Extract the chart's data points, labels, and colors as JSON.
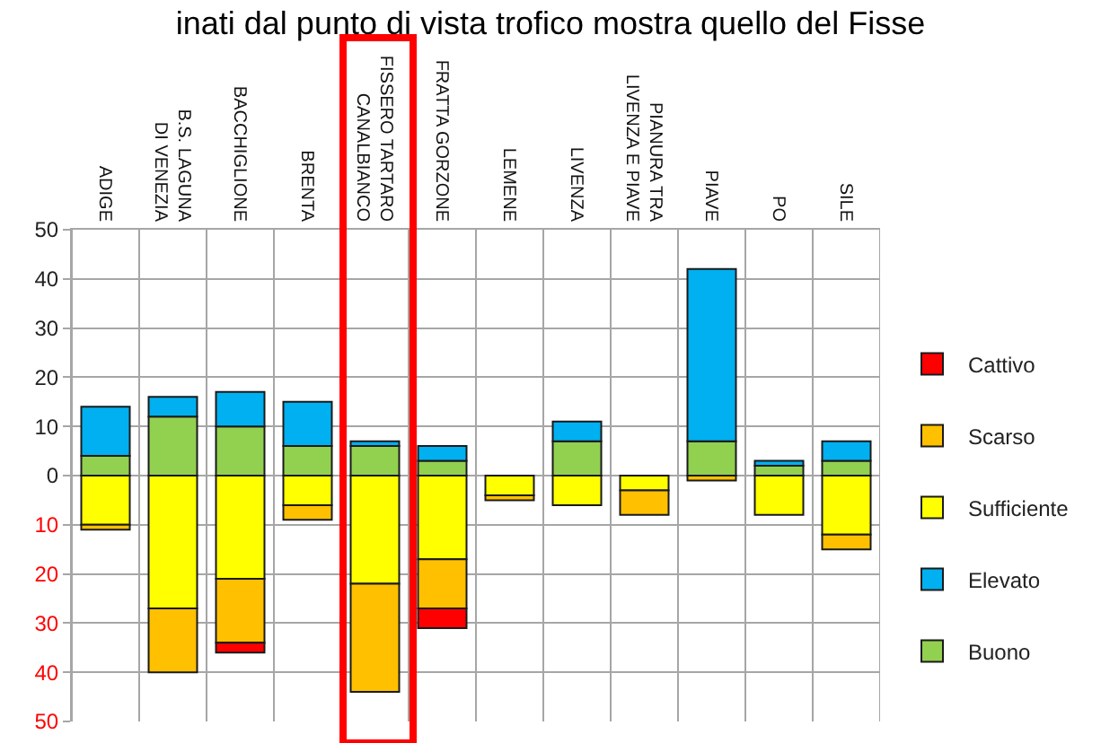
{
  "chart_data": {
    "type": "bar",
    "stacked": true,
    "title": "inati dal punto di vista trofico mostra quello del Fisse",
    "categories": [
      "ADIGE",
      "B.S. LAGUNA\nDI VENEZIA",
      "BACCHIGLIONE",
      "BRENTA",
      "FISSERO TARTARO\nCANALBIANCO",
      "FRATTA GORZONE",
      "LEMENE",
      "LIVENZA",
      "PIANURA TRA\nLIVENZA E PIAVE",
      "PIAVE",
      "PO",
      "SILE"
    ],
    "series": [
      {
        "name": "Buono",
        "color": "#92d050",
        "values": [
          4,
          12,
          10,
          6,
          6,
          3,
          null,
          7,
          null,
          7,
          2,
          3
        ]
      },
      {
        "name": "Elevato",
        "color": "#00b0f0",
        "values": [
          10,
          4,
          7,
          9,
          1,
          3,
          null,
          4,
          null,
          35,
          1,
          4
        ]
      },
      {
        "name": "Sufficiente",
        "color": "#ffff00",
        "values": [
          -10,
          -27,
          -21,
          -6,
          -22,
          -17,
          -4,
          -6,
          -3,
          null,
          -8,
          -12
        ]
      },
      {
        "name": "Scarso",
        "color": "#ffc000",
        "values": [
          -1,
          -13,
          -13,
          -3,
          -22,
          -10,
          -1,
          null,
          -5,
          -1,
          null,
          -3
        ]
      },
      {
        "name": "Cattivo",
        "color": "#ff0000",
        "values": [
          null,
          null,
          -2,
          null,
          null,
          -4,
          null,
          null,
          null,
          null,
          null,
          null
        ]
      }
    ],
    "ylim": [
      -50,
      50
    ],
    "yticks": [
      {
        "value": 50,
        "label": "50"
      },
      {
        "value": 40,
        "label": "40"
      },
      {
        "value": 30,
        "label": "30"
      },
      {
        "value": 20,
        "label": "20"
      },
      {
        "value": 10,
        "label": "10"
      },
      0,
      {
        "value": -10,
        "label": "10"
      },
      {
        "value": -20,
        "label": "20"
      },
      {
        "value": -30,
        "label": "30"
      },
      {
        "value": -40,
        "label": "40"
      },
      {
        "value": -50,
        "label": "50"
      }
    ],
    "grid": true,
    "legend": "right"
  }
}
